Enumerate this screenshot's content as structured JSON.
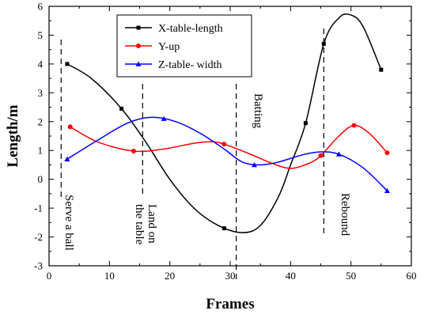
{
  "chart_data": {
    "type": "line",
    "xlabel": "Frames",
    "ylabel": "Length/m",
    "xlim": [
      0,
      60
    ],
    "ylim": [
      -3,
      6
    ],
    "xticks": [
      0,
      10,
      20,
      30,
      40,
      50,
      60
    ],
    "yticks": [
      -3,
      -2,
      -1,
      0,
      1,
      2,
      3,
      4,
      5,
      6
    ],
    "legend_position": "top-center",
    "series": [
      {
        "name": "X-table-length",
        "color": "#000000",
        "marker": "square",
        "markers": [
          [
            3,
            4.0
          ],
          [
            12,
            2.45
          ],
          [
            29,
            -1.7
          ],
          [
            42.5,
            1.95
          ],
          [
            45.5,
            4.7
          ],
          [
            55,
            3.8
          ]
        ],
        "curve": [
          [
            3,
            4.0
          ],
          [
            7,
            3.5
          ],
          [
            12,
            2.45
          ],
          [
            16,
            1.3
          ],
          [
            20,
            0.0
          ],
          [
            24,
            -1.0
          ],
          [
            28,
            -1.6
          ],
          [
            32,
            -1.85
          ],
          [
            35,
            -1.6
          ],
          [
            38,
            -0.6
          ],
          [
            40,
            0.5
          ],
          [
            42.5,
            1.95
          ],
          [
            45.5,
            4.7
          ],
          [
            48,
            5.6
          ],
          [
            50,
            5.7
          ],
          [
            52,
            5.3
          ],
          [
            55,
            3.8
          ]
        ]
      },
      {
        "name": "Y-up",
        "color": "#ff0000",
        "marker": "circle",
        "markers": [
          [
            3.5,
            1.82
          ],
          [
            14,
            0.98
          ],
          [
            29,
            1.22
          ],
          [
            45,
            0.82
          ],
          [
            50.5,
            1.87
          ],
          [
            56,
            0.92
          ]
        ],
        "curve": [
          [
            3.5,
            1.82
          ],
          [
            8,
            1.3
          ],
          [
            14,
            0.98
          ],
          [
            19,
            1.05
          ],
          [
            24,
            1.25
          ],
          [
            27,
            1.3
          ],
          [
            29,
            1.22
          ],
          [
            33,
            0.9
          ],
          [
            37,
            0.55
          ],
          [
            40,
            0.38
          ],
          [
            43,
            0.55
          ],
          [
            45,
            0.82
          ],
          [
            48,
            1.5
          ],
          [
            50.5,
            1.87
          ],
          [
            53,
            1.6
          ],
          [
            56,
            0.92
          ]
        ]
      },
      {
        "name": "Z-table- width",
        "color": "#0000ff",
        "marker": "triangle",
        "markers": [
          [
            3,
            0.7
          ],
          [
            19,
            2.1
          ],
          [
            34,
            0.5
          ],
          [
            48,
            0.87
          ],
          [
            56,
            -0.4
          ]
        ],
        "curve": [
          [
            3,
            0.7
          ],
          [
            8,
            1.35
          ],
          [
            13,
            1.95
          ],
          [
            17,
            2.15
          ],
          [
            21,
            2.0
          ],
          [
            25,
            1.6
          ],
          [
            29,
            1.05
          ],
          [
            32,
            0.6
          ],
          [
            35,
            0.5
          ],
          [
            38,
            0.6
          ],
          [
            42,
            0.85
          ],
          [
            45,
            0.95
          ],
          [
            48,
            0.87
          ],
          [
            52,
            0.4
          ],
          [
            56,
            -0.4
          ]
        ]
      }
    ],
    "vlines": [
      2,
      15.5,
      31,
      45.5
    ],
    "annotations": [
      {
        "text": "Serve a ball"
      },
      {
        "text": "Land on"
      },
      {
        "text": "the table"
      },
      {
        "text": "Batting"
      },
      {
        "text": "Rebound"
      }
    ]
  }
}
